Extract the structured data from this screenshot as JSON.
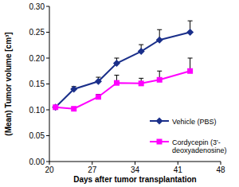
{
  "chart_data": {
    "type": "line",
    "x_label": "Days after tumor transplantation",
    "y_label": "(Mean) Tumor volume [cm³]",
    "x": [
      21,
      24,
      28,
      31,
      35,
      38,
      43
    ],
    "series": [
      {
        "name": "Vehicle (PBS)",
        "color": "#1a2f8a",
        "marker": "diamond",
        "line_style": "solid",
        "values": [
          0.105,
          0.14,
          0.155,
          0.19,
          0.213,
          0.235,
          0.25
        ],
        "errors": [
          0,
          0.005,
          0.008,
          0.01,
          0.013,
          0.02,
          0.022
        ]
      },
      {
        "name": "Cordycepin (3'-deoxyadenosine)",
        "color": "#ff00ff",
        "marker": "square",
        "line_style": "solid",
        "values": [
          0.105,
          0.102,
          0.125,
          0.152,
          0.151,
          0.158,
          0.175
        ],
        "errors": [
          0,
          0.003,
          0.005,
          0.015,
          0.01,
          0.017,
          0.025
        ]
      }
    ],
    "xlim": [
      20,
      48
    ],
    "ylim": [
      0,
      0.3
    ],
    "xticks": [
      20,
      27,
      34,
      41,
      48
    ],
    "yticks": [
      {
        "value": 0,
        "label": "0.00"
      },
      {
        "value": 0.05,
        "label": "0.05"
      },
      {
        "value": 0.1,
        "label": "0.10"
      },
      {
        "value": 0.15,
        "label": "0.15"
      },
      {
        "value": 0.2,
        "label": "0.20"
      },
      {
        "value": 0.25,
        "label": "0.25"
      },
      {
        "value": 0.3,
        "label": "0.30"
      }
    ],
    "grid": false,
    "legend": "lower right"
  }
}
